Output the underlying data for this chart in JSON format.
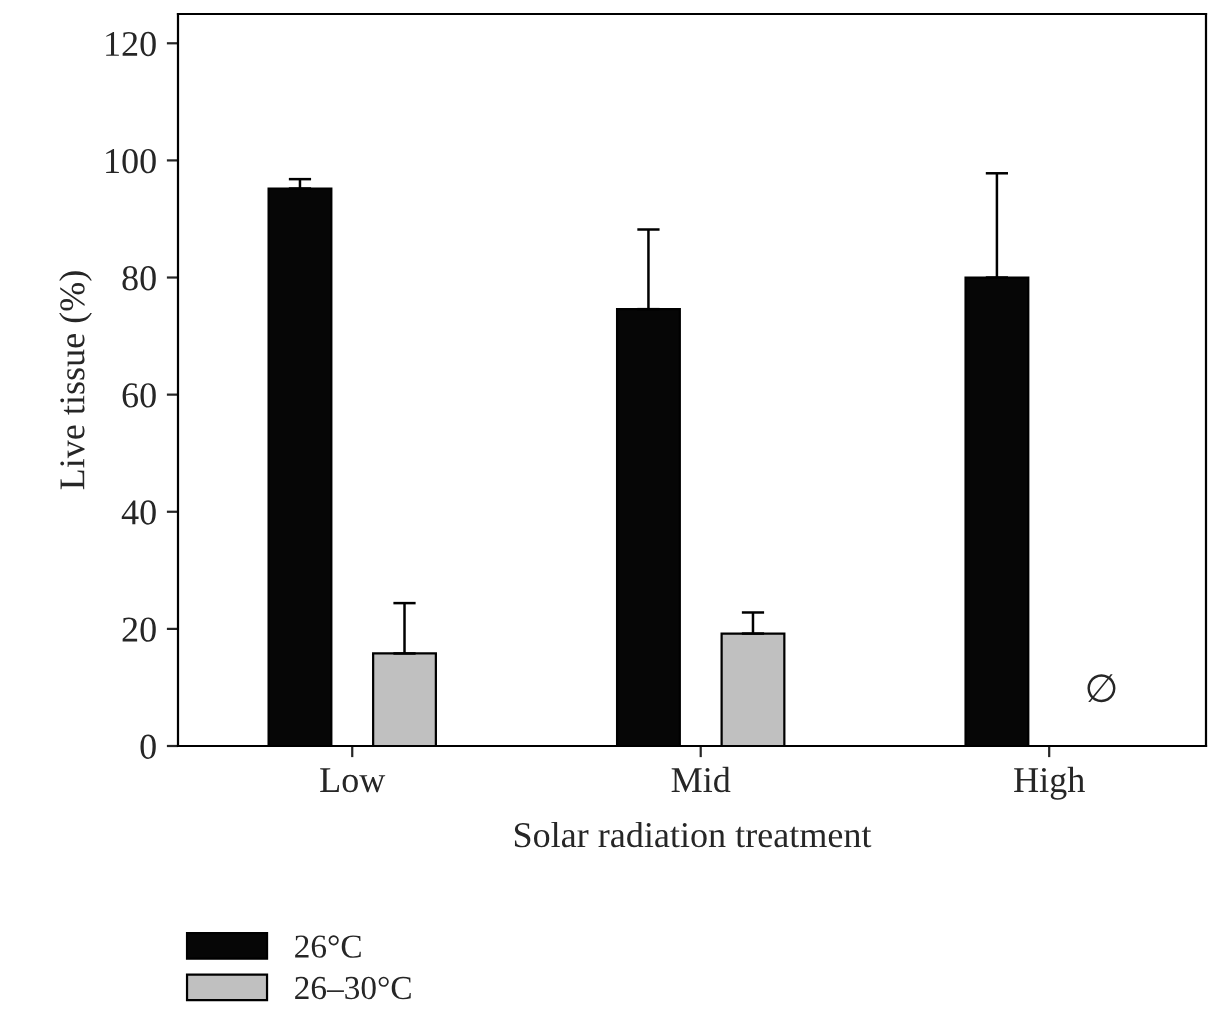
{
  "chart_data": {
    "type": "bar",
    "xlabel": "Solar radiation treatment",
    "ylabel": "Live tissue (%)",
    "categories": [
      "Low",
      "Mid",
      "High"
    ],
    "series": [
      {
        "name": "26°C",
        "color": "#060606",
        "values": [
          95.2,
          74.6,
          80.0
        ],
        "errors": [
          [
            95.2,
            96.8
          ],
          [
            74.6,
            88.2
          ],
          [
            80.0,
            97.8
          ]
        ]
      },
      {
        "name": "26–30°C",
        "color": "#c0c0c0",
        "values": [
          15.8,
          19.2,
          null
        ],
        "errors": [
          [
            15.8,
            24.4
          ],
          [
            19.2,
            22.8
          ],
          null
        ]
      }
    ],
    "annotations": [
      "∅"
    ],
    "ylim": [
      0,
      125
    ],
    "yticks": [
      0,
      20,
      40,
      60,
      80,
      100,
      120
    ],
    "grid": false,
    "legend": "bottom left"
  }
}
